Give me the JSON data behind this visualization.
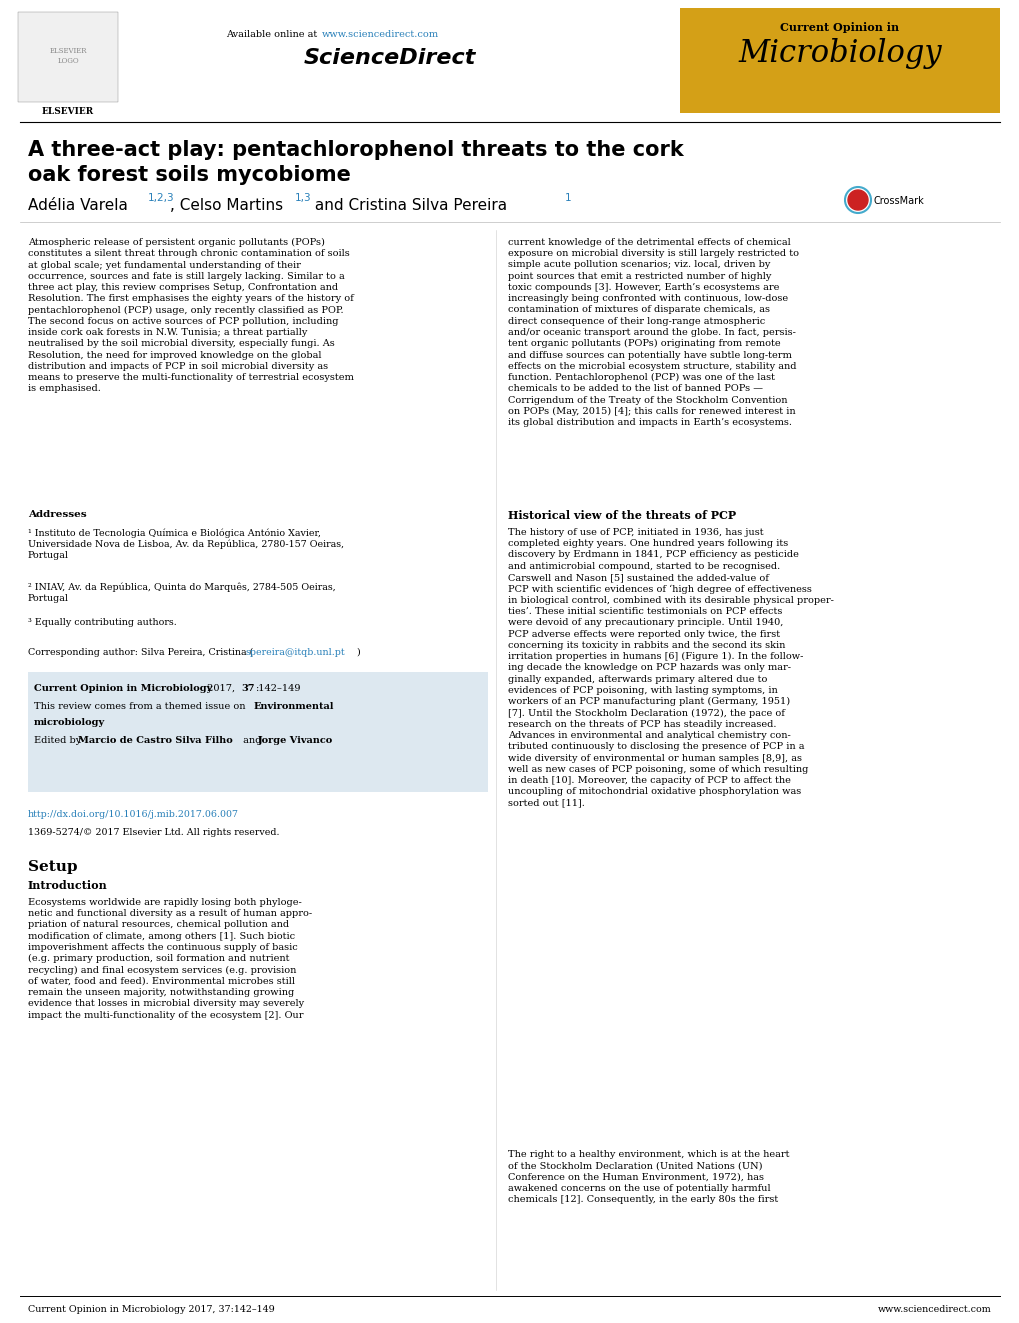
{
  "page_width": 10.2,
  "page_height": 13.23,
  "dpi": 100,
  "bg_color": "#ffffff",
  "header": {
    "available_text": "Available online at ",
    "url_text": "www.sciencedirect.com",
    "url_color": "#2980b9",
    "sciencedirect_text": "ScienceDirect",
    "journal_box_color": "#d4a017",
    "journal_label": "Current Opinion in",
    "journal_name": "Microbiology",
    "journal_text_color": "#000000"
  },
  "title_line1": "A three-act play: pentachlorophenol threats to the cork",
  "title_line2": "oak forest soils mycobiome",
  "title_color": "#000000",
  "author_line": "Adélia Varela",
  "sup1": "1,2,3",
  "author_mid": ", Celso Martins",
  "sup2": "1,3",
  "author_end": " and Cristina Silva Pereira",
  "sup3": "1",
  "sup_color": "#2980b9",
  "abstract_left": "Atmospheric release of persistent organic pollutants (POPs)\nconstitutes a silent threat through chronic contamination of soils\nat global scale; yet fundamental understanding of their\noccurrence, sources and fate is still largely lacking. Similar to a\nthree act play, this review comprises Setup, Confrontation and\nResolution. The first emphasises the eighty years of the history of\npentachlorophenol (PCP) usage, only recently classified as POP.\nThe second focus on active sources of PCP pollution, including\ninside cork oak forests in N.W. Tunisia; a threat partially\nneutralised by the soil microbial diversity, especially fungi. As\nResolution, the need for improved knowledge on the global\ndistribution and impacts of PCP in soil microbial diversity as\nmeans to preserve the multi-functionality of terrestrial ecosystem\nis emphasised.",
  "abstract_right": "current knowledge of the detrimental effects of chemical\nexposure on microbial diversity is still largely restricted to\nsimple acute pollution scenarios; viz. local, driven by\npoint sources that emit a restricted number of highly\ntoxic compounds [3]. However, Earth’s ecosystems are\nincreasingly being confronted with continuous, low-dose\ncontamination of mixtures of disparate chemicals, as\ndirect consequence of their long-range atmospheric\nand/or oceanic transport around the globe. In fact, persis-\ntent organic pollutants (POPs) originating from remote\nand diffuse sources can potentially have subtle long-term\neffects on the microbial ecosystem structure, stability and\nfunction. Pentachlorophenol (PCP) was one of the last\nchemicals to be added to the list of banned POPs —\nCorrigendum of the Treaty of the Stockholm Convention\non POPs (May, 2015) [4]; this calls for renewed interest in\nits global distribution and impacts in Earth’s ecosystems.",
  "addresses_title": "Addresses",
  "address1": "¹ Instituto de Tecnologia Química e Biológica António Xavier,\nUniversidade Nova de Lisboa, Av. da República, 2780-157 Oeiras,\nPortugal",
  "address2": "² INIAV, Av. da República, Quinta do Marquês, 2784-505 Oeiras,\nPortugal",
  "address3": "³ Equally contributing authors.",
  "corresponding_pre": "Corresponding author: Silva Pereira, Cristina (",
  "corresponding_email": "spereira@itqb.unl.pt",
  "corresponding_post": ")",
  "email_color": "#2980b9",
  "box_bg": "#dde8f0",
  "box_line1_bold": "Current Opinion in Microbiology",
  "box_line1_normal": " 2017, ​37​:142–149",
  "box_vol_bold": "37",
  "box_line2_pre": "This review comes from a themed issue on ",
  "box_line2_bold": "Environmental",
  "box_line3_bold": "microbiology",
  "box_line4_pre": "Edited by ",
  "box_line4_bold1": "Marcio de Castro Silva Filho",
  "box_line4_mid": " and ",
  "box_line4_bold2": "Jorge Vivanco",
  "doi_text": "http://dx.doi.org/10.1016/j.mib.2017.06.007",
  "doi_color": "#2980b9",
  "copyright_text": "1369-5274/© 2017 Elsevier Ltd. All rights reserved.",
  "section_setup": "Setup",
  "section_intro": "Introduction",
  "intro_left": "Ecosystems worldwide are rapidly losing both phyloge-\nnetic and functional diversity as a result of human appro-\npriation of natural resources, chemical pollution and\nmodification of climate, among others [1]. Such biotic\nimpoverishment affects the continuous supply of basic\n(e.g. primary production, soil formation and nutrient\nrecycling) and final ecosystem services (e.g. provision\nof water, food and feed). Environmental microbes still\nremain the unseen majority, notwithstanding growing\nevidence that losses in microbial diversity may severely\nimpact the multi-functionality of the ecosystem [2]. Our",
  "hist_section": "Historical view of the threats of PCP",
  "hist_text": "The history of use of PCP, initiated in 1936, has just\ncompleted eighty years. One hundred years following its\ndiscovery by Erdmann in 1841, PCP efficiency as pesticide\nand antimicrobial compound, started to be recognised.\nCarswell and Nason [5] sustained the added-value of\nPCP with scientific evidences of ‘high degree of effectiveness\nin biological control, combined with its desirable physical proper-\nties’. These initial scientific testimonials on PCP effects\nwere devoid of any precautionary principle. Until 1940,\nPCP adverse effects were reported only twice, the first\nconcerning its toxicity in rabbits and the second its skin\nirritation properties in humans [6] (Figure 1). In the follow-\ning decade the knowledge on PCP hazards was only mar-\nginally expanded, afterwards primary altered due to\nevidences of PCP poisoning, with lasting symptoms, in\nworkers of an PCP manufacturing plant (Germany, 1951)\n[7]. Until the Stockholm Declaration (1972), the pace of\nresearch on the threats of PCP has steadily increased.\nAdvances in environmental and analytical chemistry con-\ntributed continuously to disclosing the presence of PCP in a\nwide diversity of environmental or human samples [8,9], as\nwell as new cases of PCP poisoning, some of which resulting\nin death [10]. Moreover, the capacity of PCP to affect the\nuncoupling of mitochondrial oxidative phosphorylation was\nsorted out [11].",
  "right_text2": "The right to a healthy environment, which is at the heart\nof the Stockholm Declaration (United Nations (UN)\nConference on the Human Environment, 1972), has\nawakened concerns on the use of potentially harmful\nchemicals [12]. Consequently, in the early 80s the first",
  "footer_left": "Current Opinion in Microbiology 2017, 37:142–149",
  "footer_right": "www.sciencedirect.com",
  "footer_color": "#000000"
}
